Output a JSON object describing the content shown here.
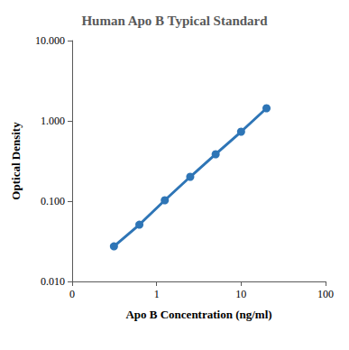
{
  "chart_data": {
    "type": "line",
    "title": "Human Apo B Typical Standard",
    "x_label": "Apo B Concentration (ng/ml)",
    "y_label": "Optical Density",
    "x": [
      0.3125,
      0.625,
      1.25,
      2.5,
      5,
      10,
      20
    ],
    "values": [
      0.0274,
      0.051,
      0.1026,
      0.201,
      0.384,
      0.733,
      1.436
    ],
    "color": "#2e75b6",
    "marker": "circle",
    "line_style": "solid",
    "log": true,
    "grid": false,
    "xlim": [
      0.1,
      100
    ],
    "xticks": [
      {
        "value": 0.1,
        "label": "0"
      },
      1,
      10,
      100
    ],
    "ylim": [
      0.01,
      10
    ],
    "yticks": [
      {
        "value": 0.01,
        "label": "0.010"
      },
      {
        "value": 0.1,
        "label": "0.100"
      },
      {
        "value": 1,
        "label": "1.000"
      },
      {
        "value": 10,
        "label": "10.000"
      }
    ]
  }
}
